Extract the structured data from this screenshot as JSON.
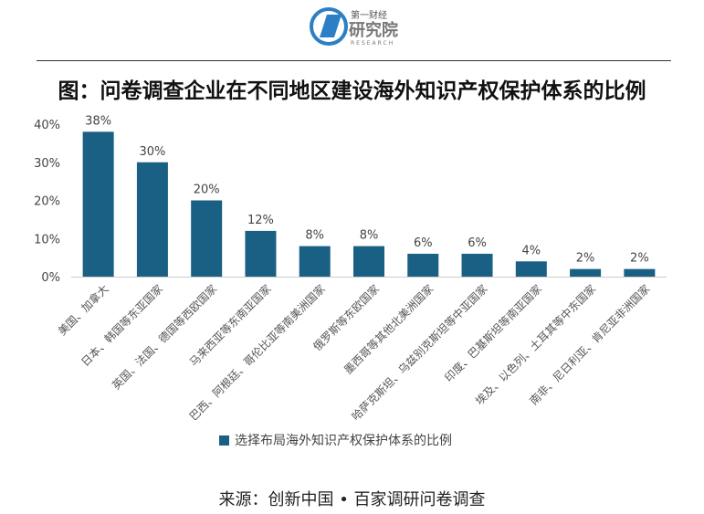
{
  "logo": {
    "line1": "第一财经",
    "line2": "研究院",
    "line3": "RESEARCH"
  },
  "title": "图：问卷调查企业在不同地区建设海外知识产权保护体系的比例",
  "chart_data": {
    "type": "bar",
    "title": "图：问卷调查企业在不同地区建设海外知识产权保护体系的比例",
    "categories": [
      "美国、加拿大",
      "日本、韩国等东亚国家",
      "英国、法国、德国等西欧国家",
      "马来西亚等东南亚国家",
      "巴西、阿根廷、哥伦比亚等南美洲国家",
      "俄罗斯等东欧国家",
      "墨西哥等其他北美洲国家",
      "哈萨克斯坦、乌兹别克斯坦等中亚国家",
      "印度、巴基斯坦等南亚国家",
      "埃及、以色列、土耳其等中东国家",
      "南非、尼日利亚、肯尼亚非洲国家"
    ],
    "series": [
      {
        "name": "选择布局海外知识产权保护体系的比例",
        "values": [
          38,
          30,
          20,
          12,
          8,
          8,
          6,
          6,
          4,
          2,
          2
        ]
      }
    ],
    "data_labels": [
      "38%",
      "30%",
      "20%",
      "12%",
      "8%",
      "8%",
      "6%",
      "6%",
      "4%",
      "2%",
      "2%"
    ],
    "yticks": [
      "0%",
      "10%",
      "20%",
      "30%",
      "40%"
    ],
    "ylim": [
      0,
      40
    ],
    "xlabel": "",
    "ylabel": "",
    "legend_position": "bottom",
    "grid": false,
    "color": "#1a5f84"
  },
  "legend": {
    "label": "选择布局海外知识产权保护体系的比例"
  },
  "source": "来源：创新中国 • 百家调研问卷调查"
}
